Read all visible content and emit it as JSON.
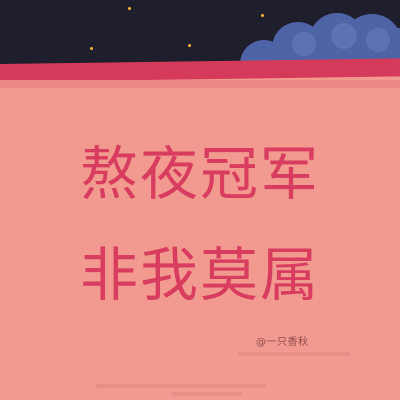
{
  "scene": {
    "headline_line1": "熬夜冠军",
    "headline_line2": "非我莫属",
    "signature": "@一只香秋"
  },
  "colors": {
    "sky": "#1e1e2c",
    "cloud": "#4f64a7",
    "cloud_highlight": "#6c7dbc",
    "roof_band": "#d63a5a",
    "wall": "#f29a90",
    "headline_text": "#d83c5e",
    "stars": "#f3b23a"
  }
}
